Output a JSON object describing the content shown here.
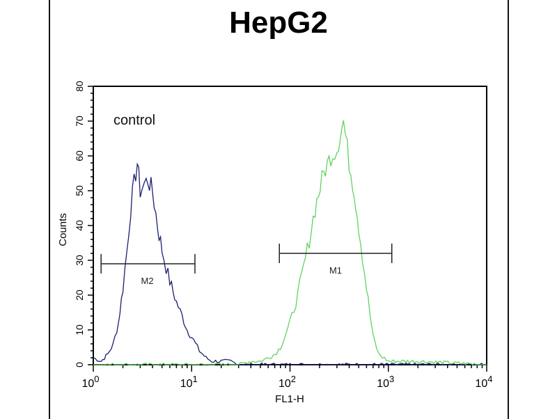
{
  "chart_data": {
    "type": "line",
    "title": "HepG2",
    "xlabel": "FL1-H",
    "ylabel": "Counts",
    "xscale": "log",
    "xlim": [
      1,
      10000
    ],
    "ylim": [
      0,
      80
    ],
    "xticks": [
      {
        "base": "10",
        "exp": "0"
      },
      {
        "base": "10",
        "exp": "1"
      },
      {
        "base": "10",
        "exp": "2"
      },
      {
        "base": "10",
        "exp": "3"
      },
      {
        "base": "10",
        "exp": "4"
      }
    ],
    "yticks": [
      "0",
      "10",
      "20",
      "30",
      "40",
      "50",
      "60",
      "70",
      "80"
    ],
    "annotation": "control",
    "series": [
      {
        "color": "#1a1f6e",
        "x": [
          1,
          1.2,
          1.4,
          1.6,
          1.8,
          2.0,
          2.2,
          2.4,
          2.6,
          2.8,
          3.0,
          3.3,
          3.6,
          4.0,
          4.5,
          5.0,
          5.5,
          6.0,
          7.0,
          8.0,
          9.0,
          10,
          12,
          14,
          16,
          20,
          25,
          30,
          100,
          10000
        ],
        "y": [
          2,
          1,
          3,
          6,
          12,
          22,
          33,
          45,
          52,
          58,
          50,
          52,
          53,
          50,
          40,
          33,
          28,
          24,
          18,
          14,
          10,
          8,
          4,
          2,
          1,
          1,
          1,
          0,
          0,
          0
        ]
      },
      {
        "color": "#5fd35f",
        "x": [
          1,
          10,
          30,
          40,
          50,
          60,
          70,
          80,
          100,
          120,
          150,
          180,
          220,
          260,
          300,
          350,
          400,
          450,
          500,
          600,
          700,
          800,
          1000,
          2000,
          10000
        ],
        "y": [
          0,
          0,
          0,
          1,
          1,
          2,
          3,
          5,
          12,
          20,
          33,
          45,
          55,
          60,
          62,
          70,
          58,
          50,
          40,
          22,
          8,
          3,
          1,
          1,
          0
        ]
      }
    ],
    "markers": [
      {
        "label": "M2",
        "x_range": [
          1.2,
          10.8
        ],
        "y": 29
      },
      {
        "label": "M1",
        "x_range": [
          78,
          1085
        ],
        "y": 32
      }
    ]
  }
}
